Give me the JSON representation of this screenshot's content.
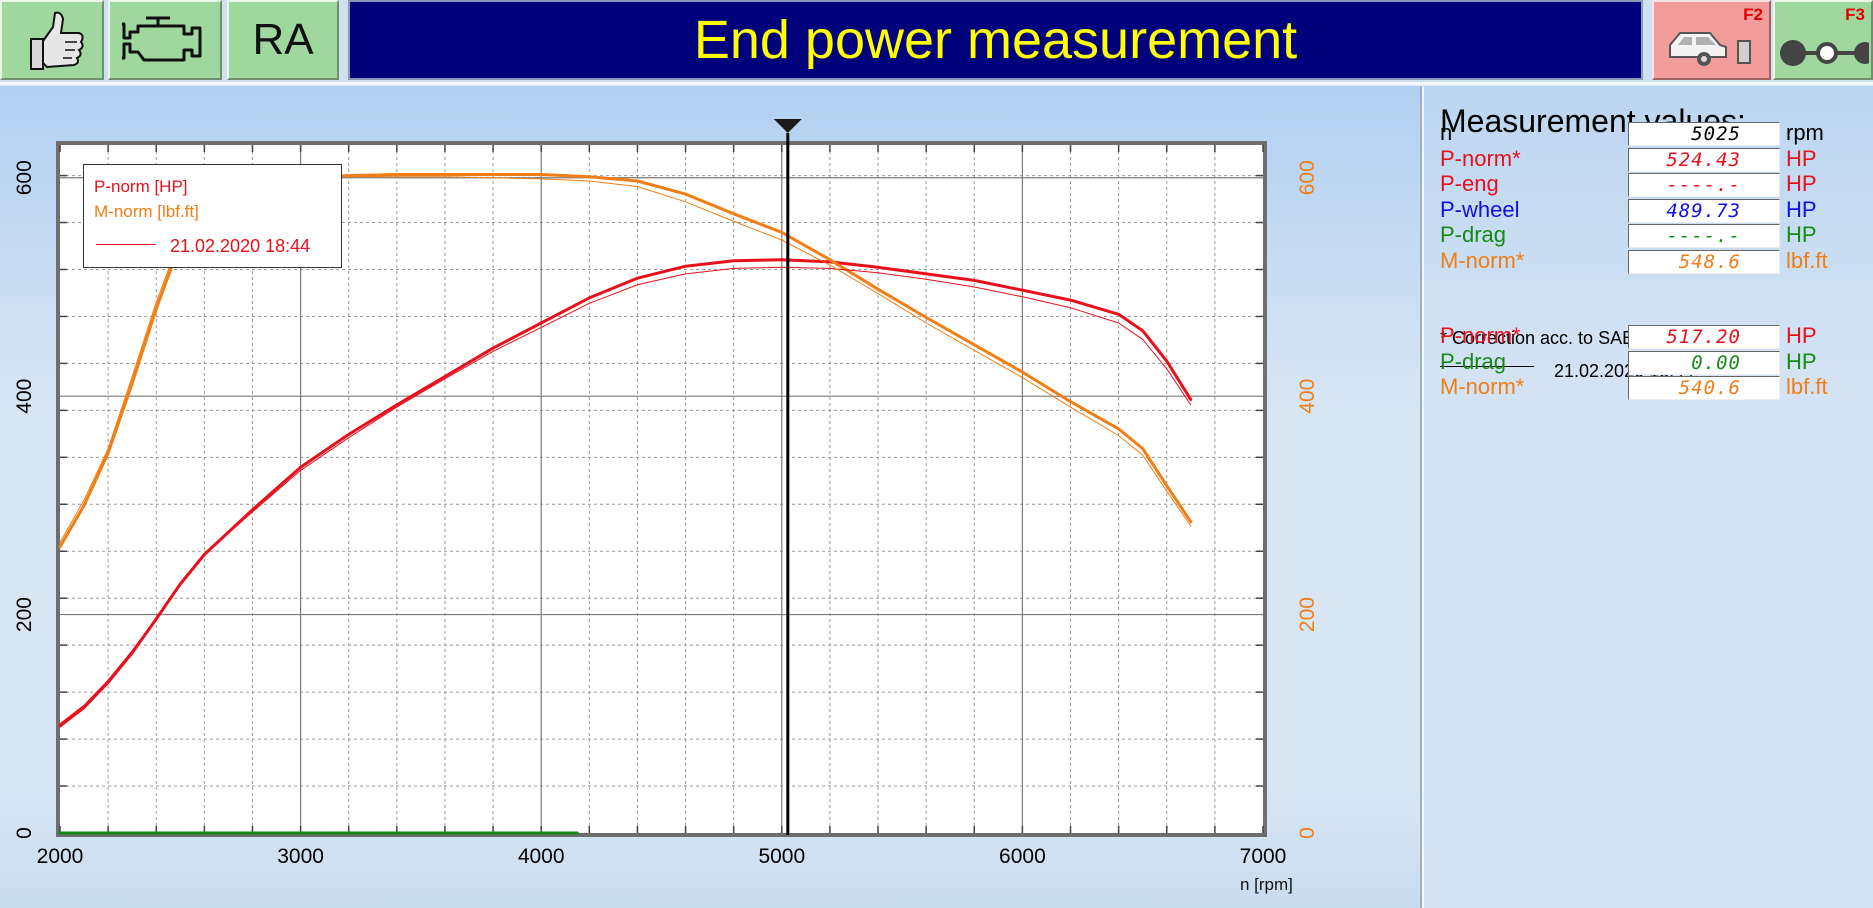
{
  "toolbar": {
    "ra_label": "RA",
    "title": "End power measurement",
    "f2_key": "F2",
    "f3_key": "F3",
    "icons": [
      "thumbs-up-icon",
      "engine-icon",
      "car-on-lift-icon",
      "trailer-icon"
    ]
  },
  "colors": {
    "p_norm": "#e8101c",
    "m_norm": "#f07e14",
    "p_wheel": "#1010e8",
    "p_drag": "#158a15",
    "title_bg": "#01017b",
    "title_fg": "#ffff00",
    "button_green": "#9fd79f",
    "button_red": "#f39c9c"
  },
  "legend": {
    "p_label": "P-norm [HP]",
    "m_label": "M-norm [lbf.ft]",
    "ref_date": "21.02.2020 18:44"
  },
  "chart_data": {
    "type": "line",
    "xlabel": "n [rpm]",
    "xlim": [
      2000,
      7000
    ],
    "x_ticks": [
      "2000",
      "3000",
      "4000",
      "5000",
      "6000",
      "7000"
    ],
    "ylim_left": [
      0,
      630
    ],
    "y_ticks_left": [
      "0",
      "200",
      "400",
      "600"
    ],
    "ylim_right": [
      0,
      630
    ],
    "y_ticks_right": [
      "0",
      "200",
      "400",
      "600"
    ],
    "grid": true,
    "legend_position": "top-left",
    "cursor_x": 5025,
    "series": [
      {
        "name": "P-norm [HP]",
        "axis": "left",
        "color": "#e8101c",
        "width": 3,
        "x": [
          2000,
          2100,
          2200,
          2300,
          2400,
          2500,
          2600,
          2800,
          3000,
          3200,
          3400,
          3600,
          3800,
          4000,
          4200,
          4400,
          4600,
          4800,
          5000,
          5200,
          5400,
          5600,
          5800,
          6000,
          6200,
          6400,
          6500,
          6600,
          6700
        ],
        "y": [
          98,
          115,
          138,
          165,
          196,
          228,
          255,
          296,
          335,
          365,
          392,
          418,
          444,
          467,
          490,
          508,
          519,
          524,
          525,
          523,
          518,
          512,
          506,
          497,
          488,
          475,
          460,
          432,
          397
        ]
      },
      {
        "name": "M-norm [lbf.ft]",
        "axis": "right",
        "color": "#f07e14",
        "width": 3,
        "x": [
          2000,
          2100,
          2200,
          2300,
          2400,
          2500,
          2600,
          2800,
          3000,
          3200,
          3400,
          3600,
          3800,
          4000,
          4200,
          4400,
          4600,
          4800,
          5000,
          5200,
          5400,
          5600,
          5800,
          6000,
          6200,
          6400,
          6500,
          6600,
          6700
        ],
        "y": [
          262,
          300,
          348,
          412,
          480,
          540,
          580,
          596,
          600,
          602,
          603,
          603,
          603,
          603,
          601,
          597,
          585,
          567,
          550,
          525,
          498,
          472,
          447,
          422,
          395,
          370,
          352,
          318,
          285
        ]
      },
      {
        "name": "21.02.2020 18:44",
        "axis": "left",
        "color": "#e8101c",
        "width": 1,
        "x": [
          2000,
          2100,
          2200,
          2300,
          2400,
          2500,
          2600,
          2800,
          3000,
          3200,
          3400,
          3600,
          3800,
          4000,
          4200,
          4400,
          4600,
          4800,
          5000,
          5200,
          5400,
          5600,
          5800,
          6000,
          6200,
          6400,
          6500,
          6600,
          6700
        ],
        "y": [
          100,
          117,
          140,
          167,
          197,
          229,
          255,
          294,
          332,
          362,
          390,
          416,
          441,
          463,
          485,
          502,
          512,
          517,
          518,
          517,
          513,
          507,
          500,
          491,
          481,
          467,
          452,
          425,
          392
        ]
      },
      {
        "name": "21.02.2020 18:44",
        "axis": "right",
        "color": "#f07e14",
        "width": 1,
        "x": [
          2000,
          2100,
          2200,
          2300,
          2400,
          2500,
          2600,
          2800,
          3000,
          3200,
          3400,
          3600,
          3800,
          4000,
          4200,
          4400,
          4600,
          4800,
          5000,
          5200,
          5400,
          5600,
          5800,
          6000,
          6200,
          6400,
          6500,
          6600,
          6700
        ],
        "y": [
          266,
          305,
          352,
          418,
          486,
          545,
          584,
          598,
          600,
          601,
          601,
          601,
          600,
          599,
          597,
          592,
          578,
          560,
          543,
          520,
          494,
          467,
          442,
          417,
          390,
          364,
          346,
          313,
          281
        ]
      },
      {
        "name": "P-drag",
        "axis": "left",
        "color": "#158a15",
        "width": 3,
        "x": [
          2000,
          4150
        ],
        "y": [
          0,
          0
        ]
      }
    ]
  },
  "measurements": {
    "title": "Measurement values:",
    "rows": [
      {
        "label": "n",
        "value": "5025",
        "unit": "rpm",
        "color": "#000000"
      },
      {
        "label": "P-norm*",
        "value": "524.43",
        "unit": "HP",
        "color": "#e8101c"
      },
      {
        "label": "P-eng",
        "value": "----.-",
        "unit": "HP",
        "color": "#e8101c"
      },
      {
        "label": "P-wheel",
        "value": "489.73",
        "unit": "HP",
        "color": "#1010e8"
      },
      {
        "label": "P-drag",
        "value": "----.-",
        "unit": "HP",
        "color": "#158a15"
      },
      {
        "label": "M-norm*",
        "value": "548.6",
        "unit": "lbf.ft",
        "color": "#f07e14"
      }
    ],
    "note": "* Correction acc. to SAE J 1349",
    "ref_date": "21.02.2020 18:44",
    "ref_rows": [
      {
        "label": "P-norm*",
        "value": "517.20",
        "unit": "HP",
        "color": "#e8101c"
      },
      {
        "label": "P-drag",
        "value": "0.00",
        "unit": "HP",
        "color": "#158a15"
      },
      {
        "label": "M-norm*",
        "value": "540.6",
        "unit": "lbf.ft",
        "color": "#f07e14"
      }
    ]
  }
}
